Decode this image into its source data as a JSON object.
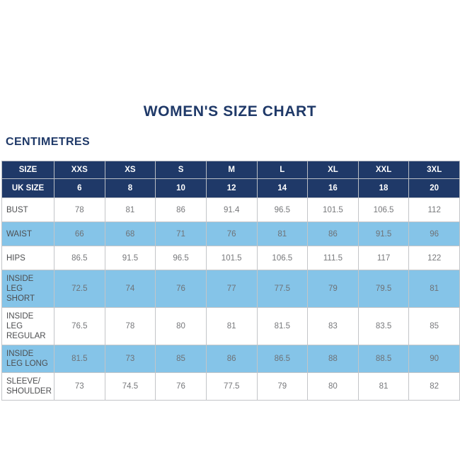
{
  "page": {
    "title": "WOMEN'S SIZE CHART",
    "unit_label": "CENTIMETRES"
  },
  "colors": {
    "navy": "#1f3968",
    "light_blue": "#85c4e8",
    "data_text": "#77787b",
    "label_text": "#4d4e50",
    "border": "#c3c5c8",
    "background": "#ffffff"
  },
  "table": {
    "header_rows": [
      {
        "label": "SIZE",
        "values": [
          "XXS",
          "XS",
          "S",
          "M",
          "L",
          "XL",
          "XXL",
          "3XL"
        ]
      },
      {
        "label": "UK SIZE",
        "values": [
          "6",
          "8",
          "10",
          "12",
          "14",
          "16",
          "18",
          "20"
        ]
      }
    ],
    "rows": [
      {
        "label": "BUST",
        "shaded": false,
        "values": [
          "78",
          "81",
          "86",
          "91.4",
          "96.5",
          "101.5",
          "106.5",
          "112"
        ]
      },
      {
        "label": "WAIST",
        "shaded": true,
        "values": [
          "66",
          "68",
          "71",
          "76",
          "81",
          "86",
          "91.5",
          "96"
        ]
      },
      {
        "label": "HIPS",
        "shaded": false,
        "values": [
          "86.5",
          "91.5",
          "96.5",
          "101.5",
          "106.5",
          "111.5",
          "117",
          "122"
        ]
      },
      {
        "label": "INSIDE LEG SHORT",
        "shaded": true,
        "values": [
          "72.5",
          "74",
          "76",
          "77",
          "77.5",
          "79",
          "79.5",
          "81"
        ]
      },
      {
        "label": "INSIDE LEG REGULAR",
        "shaded": false,
        "values": [
          "76.5",
          "78",
          "80",
          "81",
          "81.5",
          "83",
          "83.5",
          "85"
        ]
      },
      {
        "label": "INSIDE LEG LONG",
        "shaded": true,
        "values": [
          "81.5",
          "73",
          "85",
          "86",
          "86.5",
          "88",
          "88.5",
          "90"
        ]
      },
      {
        "label": "SLEEVE/ SHOULDER",
        "shaded": false,
        "values": [
          "73",
          "74.5",
          "76",
          "77.5",
          "79",
          "80",
          "81",
          "82"
        ]
      }
    ]
  }
}
